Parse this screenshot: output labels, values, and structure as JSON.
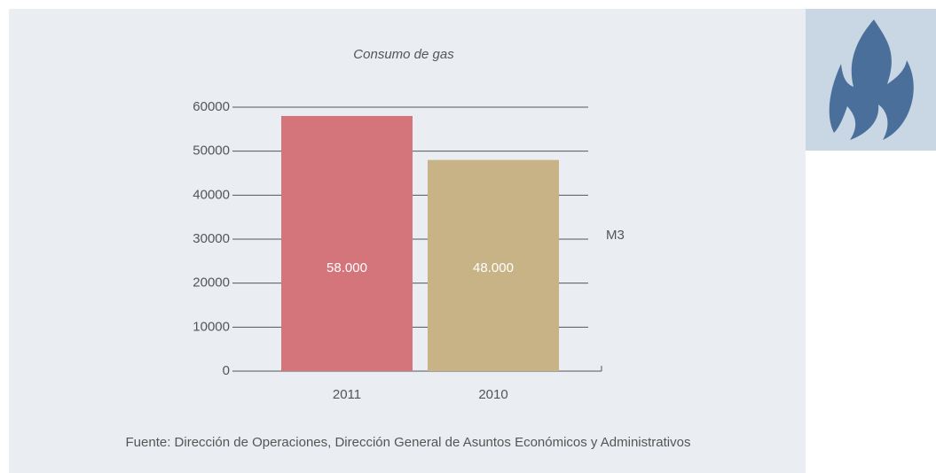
{
  "chart_data": {
    "type": "bar",
    "title": "Consumo de gas",
    "categories": [
      "2011",
      "2010"
    ],
    "series": [
      {
        "name": "Consumo",
        "colors": [
          "#d4757c",
          "#c8b387"
        ],
        "values": [
          58000,
          48000
        ],
        "value_labels": [
          "58.000",
          "48.000"
        ]
      }
    ],
    "ylabel": "M3",
    "ylim": [
      0,
      60000
    ],
    "yticks": [
      0,
      10000,
      20000,
      30000,
      40000,
      50000,
      60000
    ],
    "grid": true,
    "source": "Fuente: Dirección de Operaciones, Dirección General de Asuntos Económicos y Administrativos"
  }
}
